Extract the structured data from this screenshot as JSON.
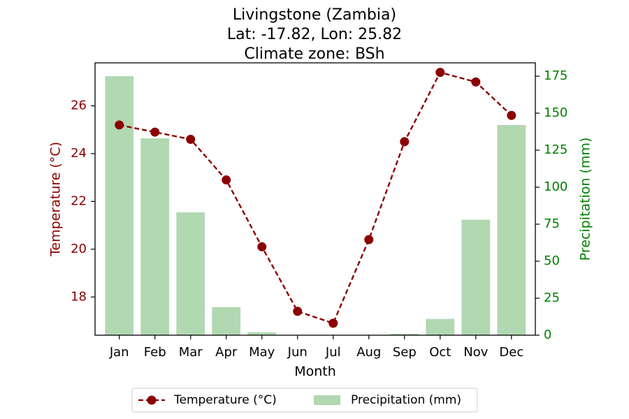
{
  "chart_data": {
    "type": "bar+line",
    "title_lines": [
      "Livingstone (Zambia)",
      "Lat: -17.82, Lon: 25.82",
      "Climate zone: BSh"
    ],
    "xlabel": "Month",
    "ylabel_left": "Temperature (°C)",
    "ylabel_right": "Precipitation (mm)",
    "categories": [
      "Jan",
      "Feb",
      "Mar",
      "Apr",
      "May",
      "Jun",
      "Jul",
      "Aug",
      "Sep",
      "Oct",
      "Nov",
      "Dec"
    ],
    "temperature": {
      "name": "Temperature (°C)",
      "values": [
        25.2,
        24.9,
        24.6,
        22.9,
        20.1,
        17.4,
        16.9,
        20.4,
        24.5,
        27.4,
        27.0,
        25.6
      ],
      "color": "#8b0000",
      "ylim": [
        16.4,
        27.8
      ],
      "ticks": [
        18,
        20,
        22,
        24,
        26
      ]
    },
    "precipitation": {
      "name": "Precipitation (mm)",
      "values": [
        175,
        133,
        83,
        19,
        2,
        0,
        0,
        0,
        1,
        11,
        78,
        142
      ],
      "color": "#b2d8b2",
      "ylim": [
        0,
        184
      ],
      "ticks": [
        0,
        25,
        50,
        75,
        100,
        125,
        150,
        175
      ]
    },
    "left_axis_color": "#8b0000",
    "right_axis_color": "#008000",
    "legend_placement": "bottom-center",
    "grid": false
  }
}
